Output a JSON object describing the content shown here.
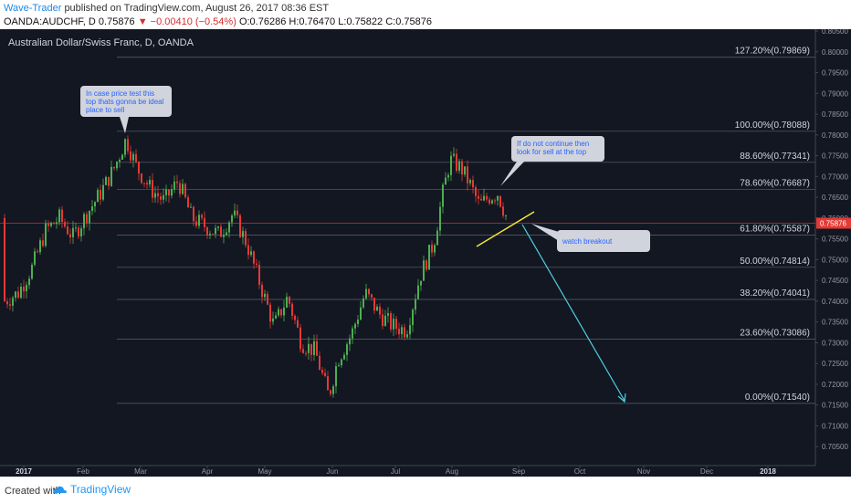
{
  "header": {
    "author": "Wave-Trader",
    "published_text": "published on TradingView.com, August 26, 2017 08:36 EST",
    "symbol": "OANDA:AUDCHF, D",
    "last_price": "0.75876",
    "change": "▼ −0.00410 (−0.54%)",
    "open": "O:0.76286",
    "high": "H:0.76470",
    "low": "L:0.75822",
    "close": "C:0.75876"
  },
  "chart": {
    "instrument_title": "Australian Dollar/Swiss Franc, D, OANDA",
    "price_axis": [
      "0.80500",
      "0.80000",
      "0.79500",
      "0.79000",
      "0.78500",
      "0.78000",
      "0.77500",
      "0.77000",
      "0.76500",
      "0.76000",
      "0.75500",
      "0.75000",
      "0.74500",
      "0.74000",
      "0.73500",
      "0.73000",
      "0.72500",
      "0.72000",
      "0.71500",
      "0.71000",
      "0.70500"
    ],
    "current_price_label": "0.75876",
    "time_axis": [
      "2017",
      "Feb",
      "Mar",
      "Apr",
      "May",
      "Jun",
      "Jul",
      "Aug",
      "Sep",
      "Oct",
      "Nov",
      "Dec",
      "2018"
    ],
    "fib_levels": [
      {
        "label": "127.20%(0.79869)",
        "price": 0.79869
      },
      {
        "label": "100.00%(0.78088)",
        "price": 0.78088
      },
      {
        "label": "88.60%(0.77341)",
        "price": 0.77341
      },
      {
        "label": "78.60%(0.76687)",
        "price": 0.76687
      },
      {
        "label": "61.80%(0.75587)",
        "price": 0.75587
      },
      {
        "label": "50.00%(0.74814)",
        "price": 0.74814
      },
      {
        "label": "38.20%(0.74041)",
        "price": 0.74041
      },
      {
        "label": "23.60%(0.73086)",
        "price": 0.73086
      },
      {
        "label": "0.00%(0.71540)",
        "price": 0.7154
      }
    ],
    "annotations": {
      "top_note": "In case price test this top thats gonna be ideal place to sell",
      "right_note": "If do not continue then look for sell at the top",
      "breakout_note": "watch breakout"
    },
    "colors": {
      "background": "#131722",
      "bull": "#26a69a",
      "up_candle": "#4caf50",
      "down_candle": "#e53935",
      "trendline": "#ffeb3b",
      "arrow": "#4dd0e1",
      "price_line": "#e53935"
    }
  },
  "footer": {
    "created_with": "Created with",
    "brand": "TradingView"
  }
}
